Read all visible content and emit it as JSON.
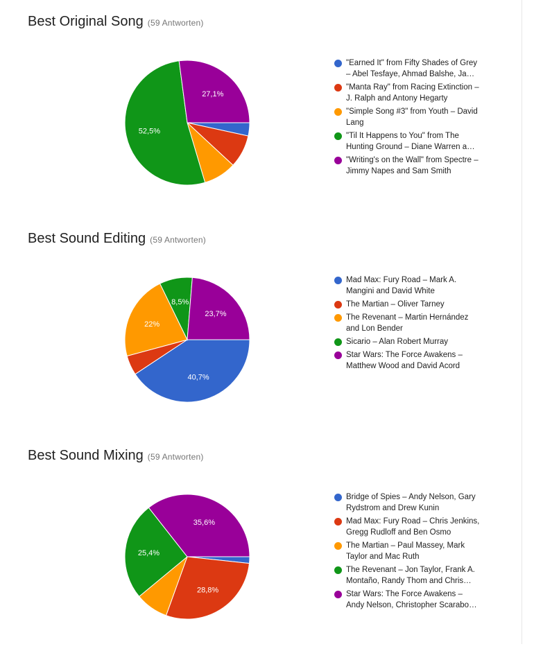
{
  "charts": [
    {
      "title": "Best Original Song",
      "count": "(59 Antworten)",
      "slices": [
        {
          "label_lines": [
            "\"Earned It\" from Fifty Shades of Grey",
            "– Abel Tesfaye, Ahmad Balshe, Ja…"
          ],
          "color": "#3366cc"
        },
        {
          "label_lines": [
            "\"Manta Ray\" from Racing Extinction –",
            "J. Ralph and Antony Hegarty"
          ],
          "color": "#dc3912"
        },
        {
          "label_lines": [
            "\"Simple Song #3\" from Youth – David",
            "Lang"
          ],
          "color": "#ff9900"
        },
        {
          "label_lines": [
            "\"Til It Happens to You\" from The",
            "Hunting Ground – Diane Warren a…"
          ],
          "color": "#109618"
        },
        {
          "label_lines": [
            "\"Writing's on the Wall\" from Spectre –",
            "Jimmy Napes and Sam Smith"
          ],
          "color": "#990099"
        }
      ]
    },
    {
      "title": "Best Sound Editing",
      "count": "(59 Antworten)",
      "slices": [
        {
          "label_lines": [
            "Mad Max: Fury Road – Mark A.",
            "Mangini and David White"
          ],
          "color": "#3366cc"
        },
        {
          "label_lines": [
            "The Martian – Oliver Tarney"
          ],
          "color": "#dc3912"
        },
        {
          "label_lines": [
            "The Revenant – Martin Hernández",
            "and Lon Bender"
          ],
          "color": "#ff9900"
        },
        {
          "label_lines": [
            "Sicario – Alan Robert Murray"
          ],
          "color": "#109618"
        },
        {
          "label_lines": [
            "Star Wars: The Force Awakens –",
            "Matthew Wood and David Acord"
          ],
          "color": "#990099"
        }
      ]
    },
    {
      "title": "Best Sound Mixing",
      "count": "(59 Antworten)",
      "slices": [
        {
          "label_lines": [
            "Bridge of Spies – Andy Nelson, Gary",
            "Rydstrom and Drew Kunin"
          ],
          "color": "#3366cc"
        },
        {
          "label_lines": [
            "Mad Max: Fury Road – Chris Jenkins,",
            "Gregg Rudloff and Ben Osmo"
          ],
          "color": "#dc3912"
        },
        {
          "label_lines": [
            "The Martian – Paul Massey, Mark",
            "Taylor and Mac Ruth"
          ],
          "color": "#ff9900"
        },
        {
          "label_lines": [
            "The Revenant – Jon Taylor, Frank A.",
            "Montaño, Randy Thom and Chris…"
          ],
          "color": "#109618"
        },
        {
          "label_lines": [
            "Star Wars: The Force Awakens –",
            "Andy Nelson, Christopher Scarabo…"
          ],
          "color": "#990099"
        }
      ]
    }
  ],
  "chart_data": [
    {
      "type": "pie",
      "title": "Best Original Song",
      "categories": [
        "\"Earned It\" from Fifty Shades of Grey – Abel Tesfaye, Ahmad Balshe, Ja…",
        "\"Manta Ray\" from Racing Extinction – J. Ralph and Antony Hegarty",
        "\"Simple Song #3\" from Youth – David Lang",
        "\"Til It Happens to You\" from The Hunting Ground – Diane Warren a…",
        "\"Writing's on the Wall\" from Spectre – Jimmy Napes and Sam Smith"
      ],
      "values": [
        3.4,
        8.5,
        8.5,
        52.5,
        27.1
      ],
      "value_labels": [
        "",
        "",
        "",
        "52,5%",
        "27,1%"
      ],
      "legend": "right"
    },
    {
      "type": "pie",
      "title": "Best Sound Editing",
      "categories": [
        "Mad Max: Fury Road – Mark A. Mangini and David White",
        "The Martian – Oliver Tarney",
        "The Revenant – Martin Hernández and Lon Bender",
        "Sicario – Alan Robert Murray",
        "Star Wars: The Force Awakens – Matthew Wood and David Acord"
      ],
      "values": [
        40.7,
        5.1,
        22,
        8.5,
        23.7
      ],
      "value_labels": [
        "40,7%",
        "",
        "22%",
        "8,5%",
        "23,7%"
      ],
      "legend": "right"
    },
    {
      "type": "pie",
      "title": "Best Sound Mixing",
      "categories": [
        "Bridge of Spies – Andy Nelson, Gary Rydstrom and Drew Kunin",
        "Mad Max: Fury Road – Chris Jenkins, Gregg Rudloff and Ben Osmo",
        "The Martian – Paul Massey, Mark Taylor and Mac Ruth",
        "The Revenant – Jon Taylor, Frank A. Montaño, Randy Thom and Chris…",
        "Star Wars: The Force Awakens – Andy Nelson, Christopher Scarabo…"
      ],
      "values": [
        1.7,
        28.8,
        8.5,
        25.4,
        35.6
      ],
      "value_labels": [
        "",
        "28,8%",
        "",
        "25,4%",
        "35,6%"
      ],
      "legend": "right"
    }
  ]
}
